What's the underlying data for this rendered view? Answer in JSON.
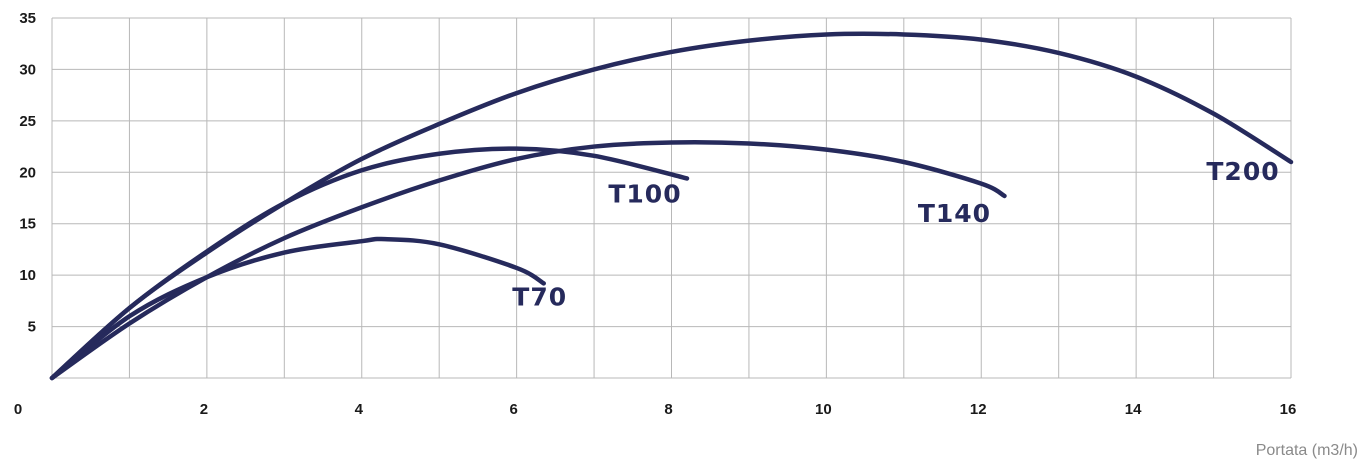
{
  "chart_data": {
    "type": "line",
    "title": "",
    "xlabel": "Portata (m3/h)",
    "ylabel": "",
    "xlim": [
      0,
      16
    ],
    "ylim": [
      0,
      35
    ],
    "x_ticks": [
      0,
      2,
      4,
      6,
      8,
      10,
      12,
      14,
      16
    ],
    "y_ticks": [
      5,
      10,
      15,
      20,
      25,
      30,
      35
    ],
    "grid": true,
    "legend": "labels at curve ends",
    "line_color": "#262a5c",
    "series": [
      {
        "name": "T70",
        "x": [
          0,
          1,
          2,
          3,
          4,
          4.3,
          5,
          6,
          6.35
        ],
        "y": [
          0,
          6,
          9.8,
          12.2,
          13.3,
          13.5,
          13,
          10.7,
          9.2
        ]
      },
      {
        "name": "T100",
        "x": [
          0,
          1,
          2,
          3,
          4,
          5,
          6,
          7,
          8.2
        ],
        "y": [
          0,
          6.8,
          12.3,
          17,
          20.2,
          21.8,
          22.3,
          21.6,
          19.4
        ]
      },
      {
        "name": "T140",
        "x": [
          0,
          1,
          2,
          3,
          4,
          5,
          6,
          7,
          8,
          9,
          10,
          11,
          12,
          12.3
        ],
        "y": [
          0,
          5.3,
          9.8,
          13.6,
          16.6,
          19.2,
          21.3,
          22.5,
          22.9,
          22.8,
          22.2,
          21,
          18.9,
          17.7
        ]
      },
      {
        "name": "T200",
        "x": [
          0,
          1,
          2,
          3,
          4,
          5,
          6,
          7,
          8,
          9,
          10,
          11,
          12,
          13,
          14,
          15,
          16
        ],
        "y": [
          0,
          6.8,
          12.2,
          17,
          21.3,
          24.7,
          27.7,
          30,
          31.7,
          32.8,
          33.4,
          33.4,
          32.9,
          31.6,
          29.3,
          25.7,
          21
        ]
      }
    ]
  }
}
